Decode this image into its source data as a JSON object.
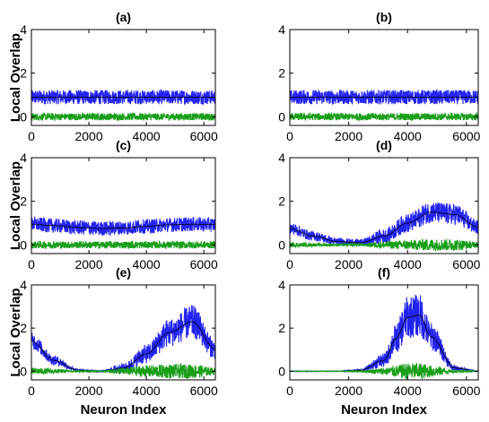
{
  "colors": {
    "blue": "#2323f0",
    "green": "#1a9e1a",
    "mean": "#000000"
  },
  "axis_text": {
    "ylabel": "Local Overlap",
    "xlabel": "Neuron Index"
  },
  "chart_data": [
    {
      "type": "line",
      "label": "(a)",
      "xlim": [
        0,
        6400
      ],
      "ylim": [
        -0.4,
        4
      ],
      "xticks": [
        0,
        2000,
        4000,
        6000
      ],
      "yticks": [
        0,
        2,
        4
      ],
      "ylabel": "Local Overlap",
      "xlabel": "",
      "x": [
        0,
        800,
        1600,
        2400,
        3200,
        4000,
        4800,
        5600,
        6400
      ],
      "series": [
        {
          "values": [
            0.9,
            0.9,
            0.9,
            0.9,
            0.9,
            0.9,
            0.9,
            0.9,
            0.9
          ],
          "band": [
            0.3,
            0.3,
            0.3,
            0.3,
            0.3,
            0.3,
            0.3,
            0.3,
            0.3
          ],
          "color": "blue"
        },
        {
          "values": [
            0.0,
            0.0,
            0.0,
            0.0,
            0.0,
            0.0,
            0.0,
            0.0,
            0.0
          ],
          "band": [
            0.15,
            0.15,
            0.15,
            0.15,
            0.15,
            0.15,
            0.15,
            0.15,
            0.15
          ],
          "color": "green"
        }
      ]
    },
    {
      "type": "line",
      "label": "(b)",
      "xlim": [
        0,
        6400
      ],
      "ylim": [
        -0.4,
        4
      ],
      "xticks": [
        0,
        2000,
        4000,
        6000
      ],
      "yticks": [
        0,
        2,
        4
      ],
      "ylabel": "",
      "xlabel": "",
      "x": [
        0,
        800,
        1600,
        2400,
        3200,
        4000,
        4800,
        5600,
        6400
      ],
      "series": [
        {
          "values": [
            0.9,
            0.9,
            0.9,
            0.9,
            0.9,
            0.9,
            0.9,
            0.9,
            0.9
          ],
          "band": [
            0.3,
            0.3,
            0.3,
            0.3,
            0.3,
            0.3,
            0.3,
            0.3,
            0.3
          ],
          "color": "blue"
        },
        {
          "values": [
            0.0,
            0.0,
            0.0,
            0.0,
            0.0,
            0.0,
            0.0,
            0.0,
            0.0
          ],
          "band": [
            0.15,
            0.15,
            0.15,
            0.15,
            0.15,
            0.15,
            0.15,
            0.15,
            0.15
          ],
          "color": "green"
        }
      ]
    },
    {
      "type": "line",
      "label": "(c)",
      "xlim": [
        0,
        6400
      ],
      "ylim": [
        -0.4,
        4
      ],
      "xticks": [
        0,
        2000,
        4000,
        6000
      ],
      "yticks": [
        0,
        2,
        4
      ],
      "ylabel": "Local Overlap",
      "xlabel": "",
      "x": [
        0,
        800,
        1600,
        2400,
        3200,
        4000,
        4800,
        5600,
        6400
      ],
      "series": [
        {
          "values": [
            0.95,
            0.88,
            0.8,
            0.75,
            0.78,
            0.85,
            0.92,
            0.95,
            0.93
          ],
          "band": [
            0.3,
            0.3,
            0.3,
            0.3,
            0.3,
            0.3,
            0.3,
            0.3,
            0.3
          ],
          "color": "blue"
        },
        {
          "values": [
            0.0,
            0.0,
            0.0,
            0.0,
            0.0,
            0.0,
            0.0,
            0.0,
            0.0
          ],
          "band": [
            0.15,
            0.15,
            0.15,
            0.15,
            0.15,
            0.15,
            0.15,
            0.15,
            0.15
          ],
          "color": "green"
        }
      ]
    },
    {
      "type": "line",
      "label": "(d)",
      "xlim": [
        0,
        6400
      ],
      "ylim": [
        -0.4,
        4
      ],
      "xticks": [
        0,
        2000,
        4000,
        6000
      ],
      "yticks": [
        0,
        2,
        4
      ],
      "ylabel": "",
      "xlabel": "",
      "x": [
        0,
        800,
        1600,
        2400,
        3200,
        4000,
        4800,
        5600,
        6400
      ],
      "series": [
        {
          "values": [
            0.75,
            0.4,
            0.15,
            0.1,
            0.4,
            1.0,
            1.5,
            1.4,
            0.8
          ],
          "band": [
            0.25,
            0.2,
            0.15,
            0.15,
            0.3,
            0.4,
            0.45,
            0.45,
            0.3
          ],
          "color": "blue"
        },
        {
          "values": [
            0.0,
            0.0,
            0.0,
            0.0,
            0.0,
            0.0,
            0.0,
            0.0,
            0.0
          ],
          "band": [
            0.1,
            0.07,
            0.05,
            0.05,
            0.15,
            0.2,
            0.25,
            0.25,
            0.12
          ],
          "color": "green"
        }
      ]
    },
    {
      "type": "line",
      "label": "(e)",
      "xlim": [
        0,
        6400
      ],
      "ylim": [
        -0.4,
        4
      ],
      "xticks": [
        0,
        2000,
        4000,
        6000
      ],
      "yticks": [
        0,
        2,
        4
      ],
      "ylabel": "Local Overlap",
      "xlabel": "Neuron Index",
      "x": [
        0,
        800,
        1600,
        2400,
        3200,
        4000,
        4800,
        5600,
        6400
      ],
      "series": [
        {
          "values": [
            1.4,
            0.5,
            0.05,
            0.0,
            0.15,
            0.8,
            1.8,
            2.3,
            1.0
          ],
          "band": [
            0.35,
            0.2,
            0.05,
            0.03,
            0.2,
            0.4,
            0.6,
            0.7,
            0.4
          ],
          "color": "blue"
        },
        {
          "values": [
            0.0,
            0.0,
            0.0,
            0.0,
            0.0,
            0.0,
            0.0,
            0.0,
            0.0
          ],
          "band": [
            0.15,
            0.1,
            0.03,
            0.02,
            0.15,
            0.25,
            0.3,
            0.3,
            0.15
          ],
          "color": "green"
        }
      ]
    },
    {
      "type": "line",
      "label": "(f)",
      "xlim": [
        0,
        6400
      ],
      "ylim": [
        -0.4,
        4
      ],
      "xticks": [
        0,
        2000,
        4000,
        6000
      ],
      "yticks": [
        0,
        2,
        4
      ],
      "ylabel": "",
      "xlabel": "Neuron Index",
      "x": [
        0,
        800,
        1600,
        2400,
        3200,
        3600,
        4000,
        4400,
        4800,
        5600,
        6400
      ],
      "series": [
        {
          "values": [
            0.0,
            0.0,
            0.0,
            0.05,
            0.5,
            1.5,
            2.5,
            2.6,
            1.6,
            0.15,
            0.0
          ],
          "band": [
            0.01,
            0.01,
            0.01,
            0.05,
            0.3,
            0.6,
            0.9,
            0.9,
            0.6,
            0.1,
            0.01
          ],
          "color": "blue"
        },
        {
          "values": [
            0.0,
            0.0,
            0.0,
            0.0,
            0.0,
            0.0,
            0.0,
            0.0,
            0.0,
            0.0,
            0.0
          ],
          "band": [
            0.01,
            0.01,
            0.01,
            0.03,
            0.15,
            0.25,
            0.35,
            0.35,
            0.25,
            0.05,
            0.01
          ],
          "color": "green"
        }
      ]
    }
  ]
}
